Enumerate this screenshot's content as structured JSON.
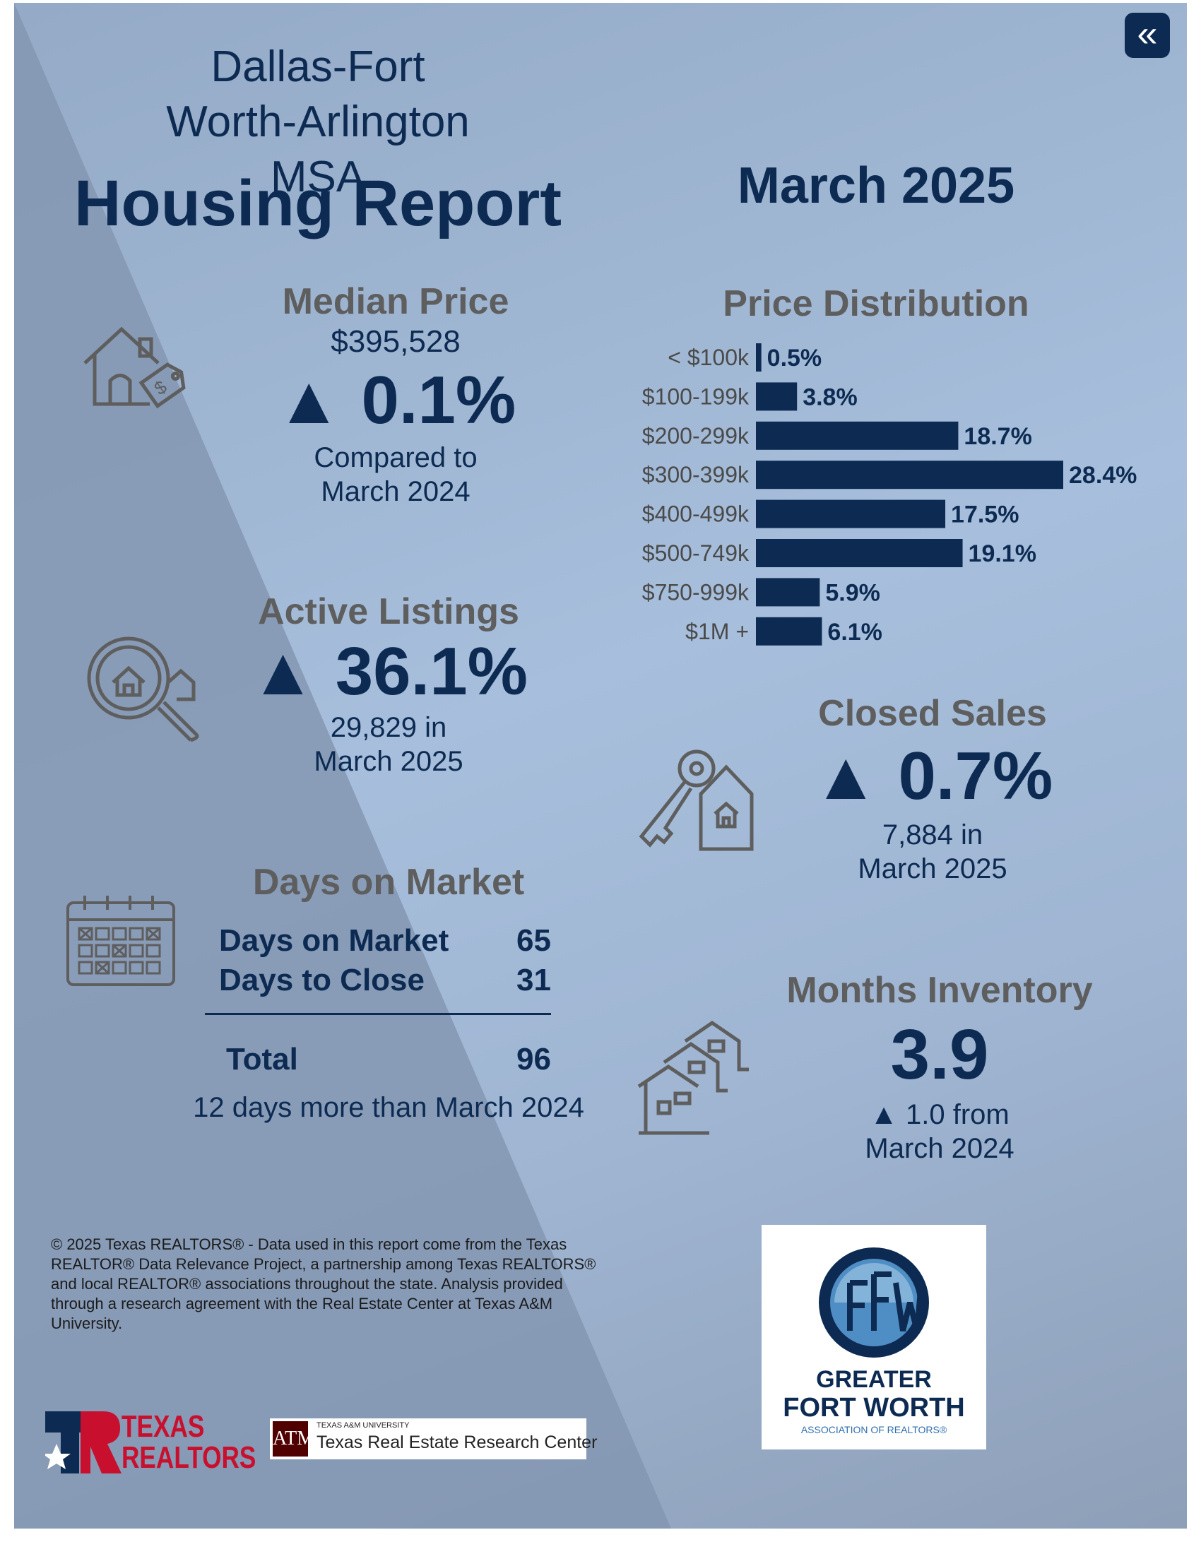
{
  "header": {
    "msa_title": "Dallas-Fort Worth-Arlington MSA",
    "report_title": "Housing Report",
    "report_date": "March 2025",
    "back_icon": "double-chevron-left-icon"
  },
  "median_price": {
    "heading": "Median Price",
    "value": "$395,528",
    "change": "▲ 0.1%",
    "compare_line1": "Compared to",
    "compare_line2": "March 2024",
    "icon": "house-price-tag-icon"
  },
  "active_listings": {
    "heading": "Active Listings",
    "change": "▲ 36.1%",
    "line1": "29,829 in",
    "line2": "March 2025",
    "icon": "magnifier-house-icon"
  },
  "days_on_market": {
    "heading": "Days on Market",
    "rows": [
      {
        "label": "Days on Market",
        "value": "65"
      },
      {
        "label": "Days to Close",
        "value": "31"
      }
    ],
    "total_label": "Total",
    "total_value": "96",
    "comparison": "12 days more than March 2024",
    "icon": "calendar-icon"
  },
  "price_distribution": {
    "heading": "Price Distribution"
  },
  "chart_data": {
    "type": "bar",
    "orientation": "horizontal",
    "title": "Price Distribution",
    "categories": [
      "< $100k",
      "$100-199k",
      "$200-299k",
      "$300-399k",
      "$400-499k",
      "$500-749k",
      "$750-999k",
      "$1M +"
    ],
    "values": [
      0.5,
      3.8,
      18.7,
      28.4,
      17.5,
      19.1,
      5.9,
      6.1
    ],
    "value_labels": [
      "0.5%",
      "3.8%",
      "18.7%",
      "28.4%",
      "17.5%",
      "19.1%",
      "5.9%",
      "6.1%"
    ],
    "unit": "%",
    "xlim": [
      0,
      28.4
    ],
    "grid": false,
    "bar_color": "#0d2b52"
  },
  "closed_sales": {
    "heading": "Closed Sales",
    "change": "▲ 0.7%",
    "line1": "7,884 in",
    "line2": "March 2025",
    "icon": "key-house-icon"
  },
  "months_inventory": {
    "heading": "Months Inventory",
    "value": "3.9",
    "line1": "▲ 1.0 from",
    "line2": "March 2024",
    "icon": "houses-row-icon"
  },
  "footer": {
    "disclaimer": "© 2025 Texas REALTORS® - Data used in this report come from the Texas REALTOR® Data Relevance Project, a partnership among Texas REALTORS® and local REALTOR® associations throughout the state. Analysis provided through a research agreement with the Real Estate Center at Texas A&M University.",
    "texas_realtors_logo": "TEXAS REALTORS",
    "tamu_small": "TEXAS A&M UNIVERSITY",
    "tamu_center": "Texas Real Estate Research Center",
    "gfw_line1": "GREATER",
    "gfw_line2": "FORT WORTH",
    "gfw_line3": "ASSOCIATION OF REALTORS®"
  },
  "colors": {
    "navy": "#0d2b52",
    "heading_gray": "#5e5e5e",
    "texas_red": "#c8102e",
    "tamu_maroon": "#500000"
  }
}
